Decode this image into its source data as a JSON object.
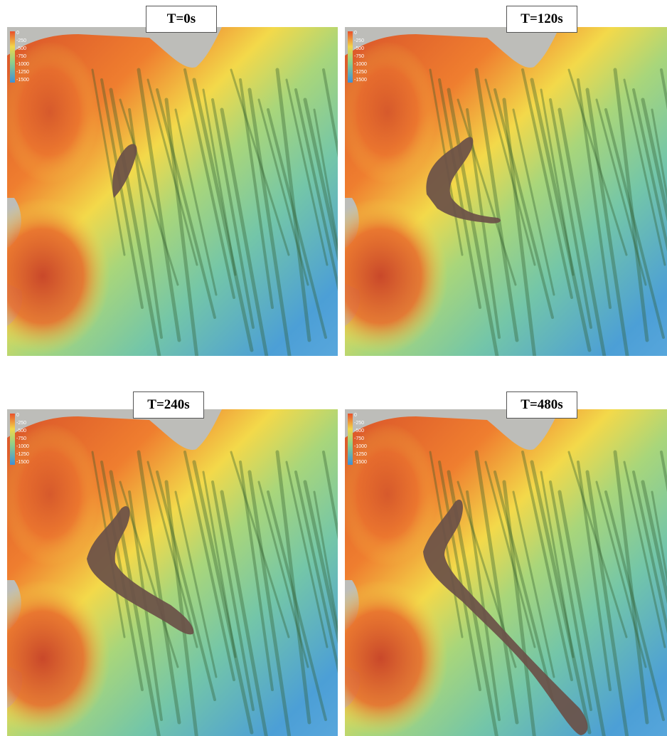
{
  "legend": [
    "0",
    "-250",
    "-500",
    "-750",
    "-1000",
    "-1250",
    "-1500"
  ],
  "panels": [
    {
      "title": "T=0s"
    },
    {
      "title": "T=120s"
    },
    {
      "title": "T=240s"
    },
    {
      "title": "T=480s"
    }
  ]
}
